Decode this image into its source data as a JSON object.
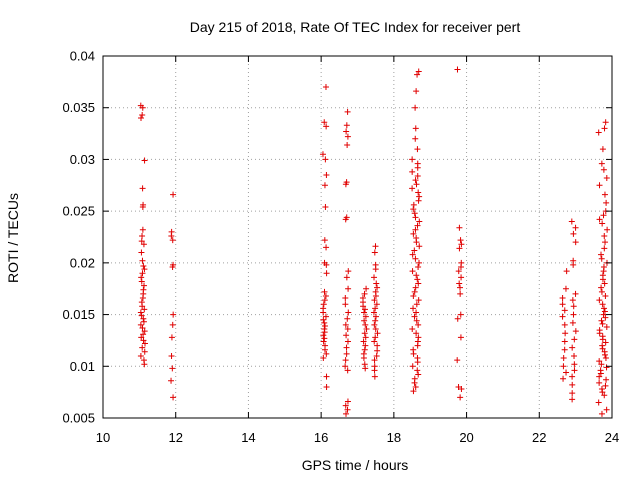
{
  "chart_data": {
    "type": "scatter",
    "title": "Day 215 of 2018, Rate Of TEC Index for receiver pert",
    "xlabel": "GPS time / hours",
    "ylabel": "ROTI / TECUs",
    "xlim": [
      10,
      24
    ],
    "ylim": [
      0.005,
      0.04
    ],
    "xticks": [
      10,
      12,
      14,
      16,
      18,
      20,
      22,
      24
    ],
    "yticks": [
      0.005,
      0.01,
      0.015,
      0.02,
      0.025,
      0.03,
      0.035,
      0.04
    ],
    "xtick_labels": [
      "10",
      "12",
      "14",
      "16",
      "18",
      "20",
      "22",
      "24"
    ],
    "ytick_labels": [
      "0.005",
      "0.01",
      "0.015",
      "0.02",
      "0.025",
      "0.03",
      "0.035",
      "0.04"
    ],
    "grid": true,
    "marker": "+",
    "color": "#e00000",
    "clusters": [
      {
        "x": 11.1,
        "spread": 0.06,
        "points": [
          0.0352,
          0.035,
          0.0343,
          0.034,
          0.0299,
          0.0272,
          0.0256,
          0.0254,
          0.0232,
          0.0226,
          0.0221,
          0.0218,
          0.021,
          0.0202,
          0.0197,
          0.0194,
          0.019,
          0.0186,
          0.0182,
          0.0178,
          0.0174,
          0.017,
          0.0166,
          0.0162,
          0.0158,
          0.0155,
          0.0152,
          0.0149,
          0.0146,
          0.0143,
          0.014,
          0.0137,
          0.0134,
          0.0131,
          0.0128,
          0.0125,
          0.0122,
          0.0118,
          0.0114,
          0.011,
          0.0106,
          0.0102
        ]
      },
      {
        "x": 11.9,
        "spread": 0.03,
        "points": [
          0.0266,
          0.023,
          0.0226,
          0.0222,
          0.0198,
          0.0196,
          0.015,
          0.014,
          0.0128,
          0.011,
          0.0098,
          0.0086,
          0.007
        ]
      },
      {
        "x": 16.1,
        "spread": 0.05,
        "points": [
          0.037,
          0.0336,
          0.0332,
          0.0305,
          0.03,
          0.0285,
          0.0275,
          0.0254,
          0.0222,
          0.0215,
          0.02,
          0.0198,
          0.019,
          0.0172,
          0.0168,
          0.0164,
          0.016,
          0.0156,
          0.0152,
          0.0148,
          0.0145,
          0.0142,
          0.0139,
          0.0136,
          0.0133,
          0.013,
          0.0127,
          0.0124,
          0.012,
          0.0116,
          0.0112,
          0.0108,
          0.009,
          0.008
        ]
      },
      {
        "x": 16.7,
        "spread": 0.05,
        "points": [
          0.0346,
          0.0333,
          0.0327,
          0.0322,
          0.0314,
          0.0278,
          0.0276,
          0.0244,
          0.0242,
          0.0192,
          0.0186,
          0.0175,
          0.0166,
          0.016,
          0.0152,
          0.0146,
          0.014,
          0.0136,
          0.013,
          0.0124,
          0.0118,
          0.0112,
          0.0106,
          0.01,
          0.0096,
          0.0066,
          0.0062,
          0.0058,
          0.0054
        ]
      },
      {
        "x": 17.2,
        "spread": 0.05,
        "points": [
          0.0175,
          0.017,
          0.0166,
          0.0162,
          0.0158,
          0.0155,
          0.0152,
          0.0148,
          0.0144,
          0.014,
          0.0136,
          0.0132,
          0.0128,
          0.0124,
          0.012,
          0.0116,
          0.0112,
          0.0108,
          0.0102,
          0.0098
        ]
      },
      {
        "x": 17.5,
        "spread": 0.06,
        "points": [
          0.0216,
          0.021,
          0.0198,
          0.0194,
          0.0186,
          0.018,
          0.0176,
          0.0172,
          0.0168,
          0.0164,
          0.016,
          0.0156,
          0.0152,
          0.0148,
          0.0144,
          0.014,
          0.0136,
          0.0132,
          0.0128,
          0.0124,
          0.012,
          0.0115,
          0.011,
          0.0106,
          0.01,
          0.0096,
          0.009
        ]
      },
      {
        "x": 18.6,
        "spread": 0.1,
        "points": [
          0.0385,
          0.0382,
          0.0366,
          0.035,
          0.033,
          0.032,
          0.031,
          0.03,
          0.0296,
          0.0292,
          0.0288,
          0.0284,
          0.028,
          0.0276,
          0.0272,
          0.0268,
          0.0264,
          0.026,
          0.0256,
          0.0252,
          0.0248,
          0.0244,
          0.024,
          0.0236,
          0.0232,
          0.0228,
          0.0224,
          0.022,
          0.0216,
          0.0212,
          0.0208,
          0.0204,
          0.02,
          0.0196,
          0.0192,
          0.0188,
          0.0184,
          0.018,
          0.0176,
          0.0172,
          0.0168,
          0.0164,
          0.016,
          0.0156,
          0.0152,
          0.0148,
          0.0144,
          0.014,
          0.0136,
          0.0132,
          0.0128,
          0.0124,
          0.012,
          0.0116,
          0.0112,
          0.0108,
          0.0104,
          0.01,
          0.0096,
          0.0092,
          0.0088,
          0.0084,
          0.008,
          0.0076
        ]
      },
      {
        "x": 19.8,
        "spread": 0.06,
        "points": [
          0.0387,
          0.0234,
          0.0222,
          0.0218,
          0.0214,
          0.02,
          0.0196,
          0.0192,
          0.0186,
          0.018,
          0.0176,
          0.017,
          0.015,
          0.0146,
          0.0128,
          0.0106,
          0.008,
          0.0078,
          0.007
        ]
      },
      {
        "x": 22.7,
        "spread": 0.06,
        "points": [
          0.0192,
          0.0175,
          0.0166,
          0.016,
          0.0154,
          0.0148,
          0.014,
          0.0132,
          0.0124,
          0.0116,
          0.0108,
          0.01,
          0.0094,
          0.0088
        ]
      },
      {
        "x": 22.95,
        "spread": 0.06,
        "points": [
          0.024,
          0.0234,
          0.0228,
          0.022,
          0.0202,
          0.0198,
          0.017,
          0.0164,
          0.0158,
          0.015,
          0.0142,
          0.0134,
          0.0126,
          0.0118,
          0.011,
          0.0102,
          0.0096,
          0.009,
          0.0082,
          0.0074,
          0.0068
        ]
      },
      {
        "x": 23.75,
        "spread": 0.12,
        "points": [
          0.0336,
          0.033,
          0.0326,
          0.031,
          0.0296,
          0.029,
          0.0282,
          0.0275,
          0.0266,
          0.0258,
          0.025,
          0.0246,
          0.0242,
          0.0238,
          0.0232,
          0.0226,
          0.022,
          0.0214,
          0.0208,
          0.0204,
          0.02,
          0.0196,
          0.0192,
          0.0188,
          0.0184,
          0.018,
          0.0176,
          0.0172,
          0.0168,
          0.0164,
          0.016,
          0.0156,
          0.0153,
          0.015,
          0.0147,
          0.0144,
          0.0141,
          0.0138,
          0.0135,
          0.0132,
          0.0129,
          0.0126,
          0.0123,
          0.012,
          0.0117,
          0.0114,
          0.0111,
          0.0108,
          0.0105,
          0.0102,
          0.0099,
          0.0096,
          0.0093,
          0.009,
          0.0087,
          0.0084,
          0.0081,
          0.0078,
          0.0075,
          0.0072,
          0.0065,
          0.0058,
          0.0054
        ]
      }
    ]
  }
}
